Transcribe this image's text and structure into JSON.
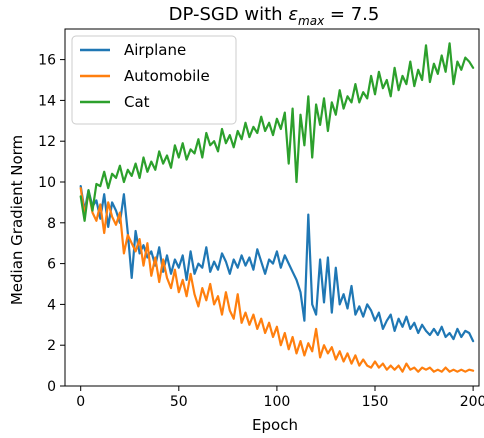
{
  "chart_data": {
    "type": "line",
    "title_prefix": "DP-SGD with ",
    "title_symbol": "ε",
    "title_subscript": "max",
    "title_suffix": " = 7.5",
    "xlabel": "Epoch",
    "ylabel": "Median Gradient Norm",
    "xlim": [
      -8,
      203
    ],
    "ylim": [
      0,
      17.5
    ],
    "xticks": [
      0,
      50,
      100,
      150,
      200
    ],
    "yticks": [
      0,
      2,
      4,
      6,
      8,
      10,
      12,
      14,
      16
    ],
    "grid": false,
    "legend_position": "top-left",
    "series": [
      {
        "name": "Airplane",
        "color": "#1f77b4",
        "points": [
          [
            0,
            9.8
          ],
          [
            2,
            8.6
          ],
          [
            4,
            9.6
          ],
          [
            6,
            8.8
          ],
          [
            8,
            9.1
          ],
          [
            10,
            8.2
          ],
          [
            12,
            9.4
          ],
          [
            14,
            7.8
          ],
          [
            16,
            9.0
          ],
          [
            18,
            8.6
          ],
          [
            20,
            8.0
          ],
          [
            22,
            9.4
          ],
          [
            24,
            7.5
          ],
          [
            26,
            5.3
          ],
          [
            28,
            7.6
          ],
          [
            30,
            6.5
          ],
          [
            32,
            6.9
          ],
          [
            34,
            6.3
          ],
          [
            36,
            6.6
          ],
          [
            38,
            5.9
          ],
          [
            40,
            6.8
          ],
          [
            42,
            5.6
          ],
          [
            44,
            6.4
          ],
          [
            46,
            5.5
          ],
          [
            48,
            6.2
          ],
          [
            50,
            5.8
          ],
          [
            52,
            6.4
          ],
          [
            54,
            5.2
          ],
          [
            56,
            6.6
          ],
          [
            58,
            5.5
          ],
          [
            60,
            6.0
          ],
          [
            62,
            5.8
          ],
          [
            64,
            6.8
          ],
          [
            66,
            5.6
          ],
          [
            68,
            6.1
          ],
          [
            70,
            5.7
          ],
          [
            72,
            6.5
          ],
          [
            74,
            6.1
          ],
          [
            76,
            5.5
          ],
          [
            78,
            6.2
          ],
          [
            80,
            5.8
          ],
          [
            82,
            6.4
          ],
          [
            84,
            5.9
          ],
          [
            86,
            6.3
          ],
          [
            88,
            5.7
          ],
          [
            90,
            6.7
          ],
          [
            92,
            6.1
          ],
          [
            94,
            5.5
          ],
          [
            96,
            6.2
          ],
          [
            98,
            6.0
          ],
          [
            100,
            6.6
          ],
          [
            102,
            5.8
          ],
          [
            104,
            6.4
          ],
          [
            106,
            6.0
          ],
          [
            108,
            5.6
          ],
          [
            110,
            5.2
          ],
          [
            112,
            4.6
          ],
          [
            114,
            3.2
          ],
          [
            116,
            8.4
          ],
          [
            118,
            4.0
          ],
          [
            120,
            3.5
          ],
          [
            122,
            6.2
          ],
          [
            124,
            4.1
          ],
          [
            126,
            6.3
          ],
          [
            128,
            3.6
          ],
          [
            130,
            5.8
          ],
          [
            132,
            4.0
          ],
          [
            134,
            4.5
          ],
          [
            136,
            3.8
          ],
          [
            138,
            4.9
          ],
          [
            140,
            3.5
          ],
          [
            142,
            3.9
          ],
          [
            144,
            3.4
          ],
          [
            146,
            4.0
          ],
          [
            148,
            3.7
          ],
          [
            150,
            3.2
          ],
          [
            152,
            3.6
          ],
          [
            154,
            2.8
          ],
          [
            156,
            3.2
          ],
          [
            158,
            3.5
          ],
          [
            160,
            2.7
          ],
          [
            162,
            3.3
          ],
          [
            164,
            2.9
          ],
          [
            166,
            3.4
          ],
          [
            168,
            2.8
          ],
          [
            170,
            3.1
          ],
          [
            172,
            2.6
          ],
          [
            174,
            3.0
          ],
          [
            176,
            2.7
          ],
          [
            178,
            2.5
          ],
          [
            180,
            2.8
          ],
          [
            182,
            2.5
          ],
          [
            184,
            2.9
          ],
          [
            186,
            2.4
          ],
          [
            188,
            2.6
          ],
          [
            190,
            2.3
          ],
          [
            192,
            2.8
          ],
          [
            194,
            2.4
          ],
          [
            196,
            2.7
          ],
          [
            198,
            2.6
          ],
          [
            200,
            2.2
          ]
        ]
      },
      {
        "name": "Automobile",
        "color": "#ff7f0e",
        "points": [
          [
            0,
            9.7
          ],
          [
            2,
            8.4
          ],
          [
            4,
            9.5
          ],
          [
            6,
            8.5
          ],
          [
            8,
            8.1
          ],
          [
            10,
            8.9
          ],
          [
            12,
            7.5
          ],
          [
            14,
            9.0
          ],
          [
            16,
            8.3
          ],
          [
            18,
            7.9
          ],
          [
            20,
            8.5
          ],
          [
            22,
            6.5
          ],
          [
            24,
            7.4
          ],
          [
            26,
            7.0
          ],
          [
            28,
            6.6
          ],
          [
            30,
            7.2
          ],
          [
            32,
            5.9
          ],
          [
            34,
            7.0
          ],
          [
            36,
            5.4
          ],
          [
            38,
            6.3
          ],
          [
            40,
            5.1
          ],
          [
            42,
            6.2
          ],
          [
            44,
            5.3
          ],
          [
            46,
            4.8
          ],
          [
            48,
            5.7
          ],
          [
            50,
            4.6
          ],
          [
            52,
            5.2
          ],
          [
            54,
            4.4
          ],
          [
            56,
            5.5
          ],
          [
            58,
            4.5
          ],
          [
            60,
            3.9
          ],
          [
            62,
            4.8
          ],
          [
            64,
            4.2
          ],
          [
            66,
            5.0
          ],
          [
            68,
            4.0
          ],
          [
            70,
            4.4
          ],
          [
            72,
            3.5
          ],
          [
            74,
            4.6
          ],
          [
            76,
            3.7
          ],
          [
            78,
            3.3
          ],
          [
            80,
            4.5
          ],
          [
            82,
            3.1
          ],
          [
            84,
            3.6
          ],
          [
            86,
            3.0
          ],
          [
            88,
            3.5
          ],
          [
            90,
            2.8
          ],
          [
            92,
            3.3
          ],
          [
            94,
            2.6
          ],
          [
            96,
            3.1
          ],
          [
            98,
            2.4
          ],
          [
            100,
            2.9
          ],
          [
            102,
            2.0
          ],
          [
            104,
            2.6
          ],
          [
            106,
            1.8
          ],
          [
            108,
            2.4
          ],
          [
            110,
            1.6
          ],
          [
            112,
            2.2
          ],
          [
            114,
            1.5
          ],
          [
            116,
            2.1
          ],
          [
            118,
            1.7
          ],
          [
            120,
            2.8
          ],
          [
            122,
            1.4
          ],
          [
            124,
            2.0
          ],
          [
            126,
            1.6
          ],
          [
            128,
            1.9
          ],
          [
            130,
            1.3
          ],
          [
            132,
            1.7
          ],
          [
            134,
            1.2
          ],
          [
            136,
            1.6
          ],
          [
            138,
            1.1
          ],
          [
            140,
            1.5
          ],
          [
            142,
            1.0
          ],
          [
            144,
            1.3
          ],
          [
            146,
            1.0
          ],
          [
            148,
            0.9
          ],
          [
            150,
            1.2
          ],
          [
            152,
            0.9
          ],
          [
            154,
            1.1
          ],
          [
            156,
            0.8
          ],
          [
            158,
            1.0
          ],
          [
            160,
            0.8
          ],
          [
            162,
            1.0
          ],
          [
            164,
            0.7
          ],
          [
            166,
            1.1
          ],
          [
            168,
            0.8
          ],
          [
            170,
            0.9
          ],
          [
            172,
            0.7
          ],
          [
            174,
            0.9
          ],
          [
            176,
            0.8
          ],
          [
            178,
            0.9
          ],
          [
            180,
            0.7
          ],
          [
            182,
            0.8
          ],
          [
            184,
            0.7
          ],
          [
            186,
            0.9
          ],
          [
            188,
            0.7
          ],
          [
            190,
            0.8
          ],
          [
            192,
            0.7
          ],
          [
            194,
            0.8
          ],
          [
            196,
            0.7
          ],
          [
            198,
            0.8
          ],
          [
            200,
            0.75
          ]
        ]
      },
      {
        "name": "Cat",
        "color": "#2ca02c",
        "points": [
          [
            0,
            9.3
          ],
          [
            2,
            8.1
          ],
          [
            4,
            9.6
          ],
          [
            6,
            8.6
          ],
          [
            8,
            9.9
          ],
          [
            10,
            9.8
          ],
          [
            12,
            10.5
          ],
          [
            14,
            9.7
          ],
          [
            16,
            10.4
          ],
          [
            18,
            10.2
          ],
          [
            20,
            10.8
          ],
          [
            22,
            10.0
          ],
          [
            24,
            10.6
          ],
          [
            26,
            10.3
          ],
          [
            28,
            10.9
          ],
          [
            30,
            10.2
          ],
          [
            32,
            11.2
          ],
          [
            34,
            10.5
          ],
          [
            36,
            11.0
          ],
          [
            38,
            10.6
          ],
          [
            40,
            11.5
          ],
          [
            42,
            10.9
          ],
          [
            44,
            11.3
          ],
          [
            46,
            10.7
          ],
          [
            48,
            11.8
          ],
          [
            50,
            11.2
          ],
          [
            52,
            11.9
          ],
          [
            54,
            11.1
          ],
          [
            56,
            11.6
          ],
          [
            58,
            11.4
          ],
          [
            60,
            12.1
          ],
          [
            62,
            11.2
          ],
          [
            64,
            12.4
          ],
          [
            66,
            11.8
          ],
          [
            68,
            12.0
          ],
          [
            70,
            11.5
          ],
          [
            72,
            12.6
          ],
          [
            74,
            11.9
          ],
          [
            76,
            12.3
          ],
          [
            78,
            11.7
          ],
          [
            80,
            12.5
          ],
          [
            82,
            12.1
          ],
          [
            84,
            12.9
          ],
          [
            86,
            12.2
          ],
          [
            88,
            12.7
          ],
          [
            90,
            12.4
          ],
          [
            92,
            13.2
          ],
          [
            94,
            12.5
          ],
          [
            96,
            12.9
          ],
          [
            98,
            12.3
          ],
          [
            100,
            13.1
          ],
          [
            102,
            12.6
          ],
          [
            104,
            13.4
          ],
          [
            106,
            10.9
          ],
          [
            108,
            13.6
          ],
          [
            110,
            10.0
          ],
          [
            112,
            13.3
          ],
          [
            114,
            11.8
          ],
          [
            116,
            14.2
          ],
          [
            118,
            11.2
          ],
          [
            120,
            13.8
          ],
          [
            122,
            12.8
          ],
          [
            124,
            14.1
          ],
          [
            126,
            12.5
          ],
          [
            128,
            13.9
          ],
          [
            130,
            13.3
          ],
          [
            132,
            14.5
          ],
          [
            134,
            13.6
          ],
          [
            136,
            14.2
          ],
          [
            138,
            13.9
          ],
          [
            140,
            14.8
          ],
          [
            142,
            13.9
          ],
          [
            144,
            14.4
          ],
          [
            146,
            14.1
          ],
          [
            148,
            15.2
          ],
          [
            150,
            14.3
          ],
          [
            152,
            15.4
          ],
          [
            154,
            14.6
          ],
          [
            156,
            15.0
          ],
          [
            158,
            14.2
          ],
          [
            160,
            15.6
          ],
          [
            162,
            14.5
          ],
          [
            164,
            15.2
          ],
          [
            166,
            14.8
          ],
          [
            168,
            15.9
          ],
          [
            170,
            14.7
          ],
          [
            172,
            15.5
          ],
          [
            174,
            15.0
          ],
          [
            176,
            16.7
          ],
          [
            178,
            14.9
          ],
          [
            180,
            15.8
          ],
          [
            182,
            15.3
          ],
          [
            184,
            16.2
          ],
          [
            186,
            15.4
          ],
          [
            188,
            16.8
          ],
          [
            190,
            14.8
          ],
          [
            192,
            15.9
          ],
          [
            194,
            15.5
          ],
          [
            196,
            16.1
          ],
          [
            198,
            15.9
          ],
          [
            200,
            15.6
          ]
        ]
      }
    ]
  }
}
